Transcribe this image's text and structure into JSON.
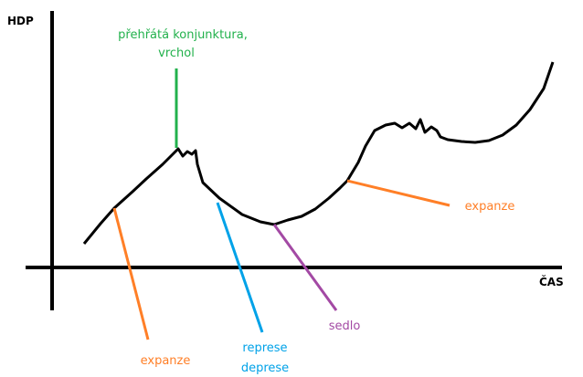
{
  "axes": {
    "y_label": "HDP",
    "x_label": "ČAS"
  },
  "annotations": [
    {
      "lines": [
        "přehřátá konjunktura,",
        "vrchol"
      ]
    },
    {
      "lines": [
        "expanze"
      ]
    },
    {
      "lines": [
        "represe",
        "deprese"
      ]
    },
    {
      "lines": [
        "sedlo"
      ]
    },
    {
      "lines": [
        "expanze"
      ]
    }
  ]
}
